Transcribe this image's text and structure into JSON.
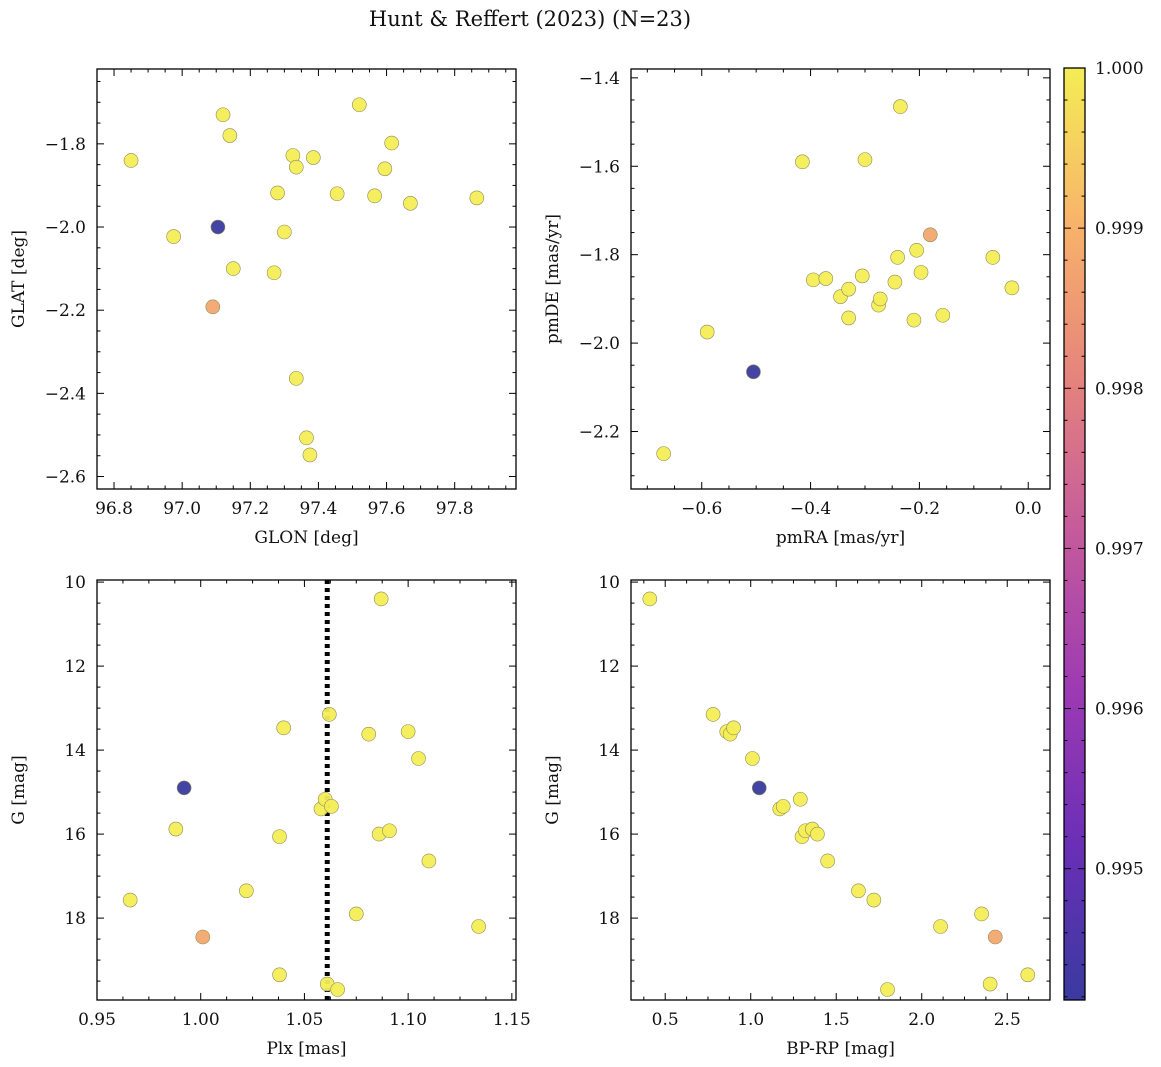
{
  "figure": {
    "title": "Hunt & Reffert (2023) (N=23)"
  },
  "colormap": {
    "name": "plasma",
    "stops": [
      "#3a3aa0",
      "#6a2fb6",
      "#9d3ab3",
      "#c45a9c",
      "#e5837d",
      "#f8b36a",
      "#f4ed55"
    ],
    "range": [
      0.99418,
      1.0
    ],
    "ticks": [
      0.995,
      0.996,
      0.997,
      0.998,
      0.999,
      1.0
    ],
    "tick_labels": [
      "0.995",
      "0.996",
      "0.997",
      "0.998",
      "0.999",
      "1.000"
    ],
    "members_value": 1.0,
    "outlier_value": 0.99418,
    "warm_value": 0.9988
  },
  "reference_line": {
    "panel": "parallax",
    "x": 1.061,
    "style": "dotted",
    "color": "#000000"
  },
  "chart_data": [
    {
      "id": "sky",
      "type": "scatter",
      "xlabel": "GLON [deg]",
      "ylabel": "GLAT [deg]",
      "xlim": [
        96.75,
        97.98
      ],
      "ylim": [
        -2.63,
        -1.62
      ],
      "xticks": [
        96.8,
        97.0,
        97.2,
        97.4,
        97.6,
        97.8
      ],
      "xtick_labels": [
        "96.8",
        "97.0",
        "97.2",
        "97.4",
        "97.6",
        "97.8"
      ],
      "yticks": [
        -1.8,
        -2.0,
        -2.2,
        -2.4,
        -2.6
      ],
      "ytick_labels": [
        "−1.8",
        "−2.0",
        "−2.2",
        "−2.4",
        "−2.6"
      ],
      "points": [
        {
          "x": 96.85,
          "y": -1.84,
          "c": 1.0
        },
        {
          "x": 96.975,
          "y": -2.023,
          "c": 1.0
        },
        {
          "x": 97.105,
          "y": -2.0,
          "c": 0.99418
        },
        {
          "x": 97.09,
          "y": -2.192,
          "c": 0.9988
        },
        {
          "x": 97.12,
          "y": -1.73,
          "c": 1.0
        },
        {
          "x": 97.14,
          "y": -1.78,
          "c": 1.0
        },
        {
          "x": 97.15,
          "y": -2.1,
          "c": 1.0
        },
        {
          "x": 97.27,
          "y": -2.11,
          "c": 1.0
        },
        {
          "x": 97.28,
          "y": -1.918,
          "c": 1.0
        },
        {
          "x": 97.3,
          "y": -2.012,
          "c": 1.0
        },
        {
          "x": 97.325,
          "y": -1.828,
          "c": 1.0
        },
        {
          "x": 97.335,
          "y": -1.856,
          "c": 1.0
        },
        {
          "x": 97.335,
          "y": -2.364,
          "c": 1.0
        },
        {
          "x": 97.365,
          "y": -2.507,
          "c": 1.0
        },
        {
          "x": 97.375,
          "y": -2.548,
          "c": 1.0
        },
        {
          "x": 97.385,
          "y": -1.833,
          "c": 1.0
        },
        {
          "x": 97.455,
          "y": -1.92,
          "c": 1.0
        },
        {
          "x": 97.52,
          "y": -1.706,
          "c": 1.0
        },
        {
          "x": 97.565,
          "y": -1.925,
          "c": 1.0
        },
        {
          "x": 97.595,
          "y": -1.86,
          "c": 1.0
        },
        {
          "x": 97.615,
          "y": -1.798,
          "c": 1.0
        },
        {
          "x": 97.67,
          "y": -1.943,
          "c": 1.0
        },
        {
          "x": 97.865,
          "y": -1.93,
          "c": 1.0
        }
      ]
    },
    {
      "id": "proper-motion",
      "type": "scatter",
      "xlabel": "pmRA [mas/yr]",
      "ylabel": "pmDE [mas/yr]",
      "xlim": [
        -0.73,
        0.04
      ],
      "ylim": [
        -2.33,
        -1.38
      ],
      "xticks": [
        -0.6,
        -0.4,
        -0.2,
        0.0
      ],
      "xtick_labels": [
        "−0.6",
        "−0.4",
        "−0.2",
        "0.0"
      ],
      "yticks": [
        -1.4,
        -1.6,
        -1.8,
        -2.0,
        -2.2
      ],
      "ytick_labels": [
        "−1.4",
        "−1.6",
        "−1.8",
        "−2.0",
        "−2.2"
      ],
      "points": [
        {
          "x": -0.67,
          "y": -2.25,
          "c": 1.0
        },
        {
          "x": -0.59,
          "y": -1.975,
          "c": 1.0
        },
        {
          "x": -0.505,
          "y": -2.065,
          "c": 0.99418
        },
        {
          "x": -0.415,
          "y": -1.59,
          "c": 1.0
        },
        {
          "x": -0.395,
          "y": -1.857,
          "c": 1.0
        },
        {
          "x": -0.372,
          "y": -1.854,
          "c": 1.0
        },
        {
          "x": -0.345,
          "y": -1.895,
          "c": 1.0
        },
        {
          "x": -0.33,
          "y": -1.878,
          "c": 1.0
        },
        {
          "x": -0.33,
          "y": -1.943,
          "c": 1.0
        },
        {
          "x": -0.305,
          "y": -1.848,
          "c": 1.0
        },
        {
          "x": -0.3,
          "y": -1.585,
          "c": 1.0
        },
        {
          "x": -0.275,
          "y": -1.914,
          "c": 1.0
        },
        {
          "x": -0.272,
          "y": -1.9,
          "c": 1.0
        },
        {
          "x": -0.245,
          "y": -1.862,
          "c": 1.0
        },
        {
          "x": -0.24,
          "y": -1.806,
          "c": 1.0
        },
        {
          "x": -0.235,
          "y": -1.465,
          "c": 1.0
        },
        {
          "x": -0.21,
          "y": -1.948,
          "c": 1.0
        },
        {
          "x": -0.205,
          "y": -1.79,
          "c": 1.0
        },
        {
          "x": -0.197,
          "y": -1.84,
          "c": 1.0
        },
        {
          "x": -0.18,
          "y": -1.755,
          "c": 0.9988
        },
        {
          "x": -0.157,
          "y": -1.937,
          "c": 1.0
        },
        {
          "x": -0.065,
          "y": -1.806,
          "c": 1.0
        },
        {
          "x": -0.03,
          "y": -1.875,
          "c": 1.0
        }
      ]
    },
    {
      "id": "parallax",
      "type": "scatter",
      "xlabel": "Plx [mas]",
      "ylabel": "G [mag]",
      "xlim": [
        0.95,
        1.152
      ],
      "ylim": [
        19.95,
        9.95
      ],
      "xticks": [
        0.95,
        1.0,
        1.05,
        1.1,
        1.15
      ],
      "xtick_labels": [
        "0.95",
        "1.00",
        "1.05",
        "1.10",
        "1.15"
      ],
      "yticks": [
        10,
        12,
        14,
        16,
        18
      ],
      "ytick_labels": [
        "10",
        "12",
        "14",
        "16",
        "18"
      ],
      "points": [
        {
          "x": 0.966,
          "y": 17.57,
          "c": 1.0
        },
        {
          "x": 0.988,
          "y": 15.88,
          "c": 1.0
        },
        {
          "x": 0.992,
          "y": 14.9,
          "c": 0.99418
        },
        {
          "x": 1.001,
          "y": 18.45,
          "c": 0.9988
        },
        {
          "x": 1.022,
          "y": 17.35,
          "c": 1.0
        },
        {
          "x": 1.038,
          "y": 16.06,
          "c": 1.0
        },
        {
          "x": 1.038,
          "y": 19.35,
          "c": 1.0
        },
        {
          "x": 1.04,
          "y": 13.47,
          "c": 1.0
        },
        {
          "x": 1.058,
          "y": 15.4,
          "c": 1.0
        },
        {
          "x": 1.06,
          "y": 15.17,
          "c": 1.0
        },
        {
          "x": 1.061,
          "y": 19.57,
          "c": 1.0
        },
        {
          "x": 1.062,
          "y": 13.15,
          "c": 1.0
        },
        {
          "x": 1.063,
          "y": 15.34,
          "c": 1.0
        },
        {
          "x": 1.066,
          "y": 19.7,
          "c": 1.0
        },
        {
          "x": 1.075,
          "y": 17.9,
          "c": 1.0
        },
        {
          "x": 1.081,
          "y": 13.62,
          "c": 1.0
        },
        {
          "x": 1.086,
          "y": 16.0,
          "c": 1.0
        },
        {
          "x": 1.087,
          "y": 10.4,
          "c": 1.0
        },
        {
          "x": 1.091,
          "y": 15.92,
          "c": 1.0
        },
        {
          "x": 1.1,
          "y": 13.56,
          "c": 1.0
        },
        {
          "x": 1.105,
          "y": 14.2,
          "c": 1.0
        },
        {
          "x": 1.11,
          "y": 16.64,
          "c": 1.0
        },
        {
          "x": 1.134,
          "y": 18.2,
          "c": 1.0
        }
      ]
    },
    {
      "id": "cmd",
      "type": "scatter",
      "xlabel": "BP-RP [mag]",
      "ylabel": "G [mag]",
      "xlim": [
        0.3,
        2.75
      ],
      "ylim": [
        19.95,
        9.95
      ],
      "xticks": [
        0.5,
        1.0,
        1.5,
        2.0,
        2.5
      ],
      "xtick_labels": [
        "0.5",
        "1.0",
        "1.5",
        "2.0",
        "2.5"
      ],
      "yticks": [
        10,
        12,
        14,
        16,
        18
      ],
      "ytick_labels": [
        "10",
        "12",
        "14",
        "16",
        "18"
      ],
      "points": [
        {
          "x": 0.41,
          "y": 10.4,
          "c": 1.0
        },
        {
          "x": 0.78,
          "y": 13.15,
          "c": 1.0
        },
        {
          "x": 0.86,
          "y": 13.56,
          "c": 1.0
        },
        {
          "x": 0.88,
          "y": 13.62,
          "c": 1.0
        },
        {
          "x": 0.9,
          "y": 13.47,
          "c": 1.0
        },
        {
          "x": 1.01,
          "y": 14.2,
          "c": 1.0
        },
        {
          "x": 1.05,
          "y": 14.9,
          "c": 0.99418
        },
        {
          "x": 1.17,
          "y": 15.4,
          "c": 1.0
        },
        {
          "x": 1.19,
          "y": 15.34,
          "c": 1.0
        },
        {
          "x": 1.29,
          "y": 15.17,
          "c": 1.0
        },
        {
          "x": 1.3,
          "y": 16.06,
          "c": 1.0
        },
        {
          "x": 1.32,
          "y": 15.92,
          "c": 1.0
        },
        {
          "x": 1.36,
          "y": 15.88,
          "c": 1.0
        },
        {
          "x": 1.39,
          "y": 16.0,
          "c": 1.0
        },
        {
          "x": 1.45,
          "y": 16.64,
          "c": 1.0
        },
        {
          "x": 1.63,
          "y": 17.35,
          "c": 1.0
        },
        {
          "x": 1.72,
          "y": 17.57,
          "c": 1.0
        },
        {
          "x": 1.8,
          "y": 19.7,
          "c": 1.0
        },
        {
          "x": 2.11,
          "y": 18.2,
          "c": 1.0
        },
        {
          "x": 2.35,
          "y": 17.9,
          "c": 1.0
        },
        {
          "x": 2.4,
          "y": 19.57,
          "c": 1.0
        },
        {
          "x": 2.43,
          "y": 18.45,
          "c": 0.9988
        },
        {
          "x": 2.62,
          "y": 19.35,
          "c": 1.0
        }
      ]
    }
  ]
}
